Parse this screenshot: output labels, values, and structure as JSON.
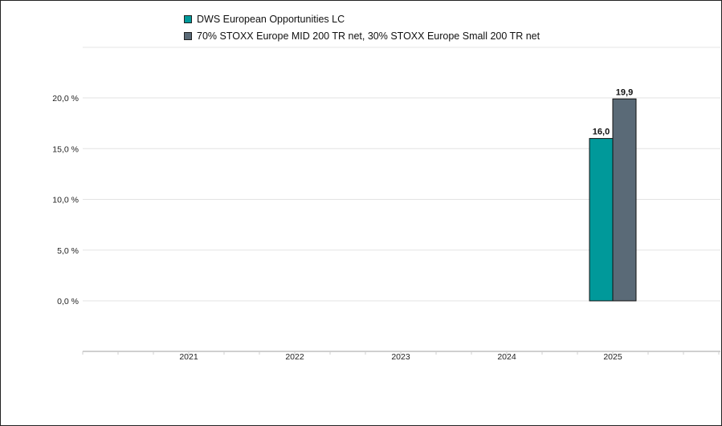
{
  "chart_data": {
    "type": "bar",
    "categories": [
      "2021",
      "2022",
      "2023",
      "2024",
      "2025"
    ],
    "series": [
      {
        "name": "DWS European Opportunities LC",
        "color": "#00999a",
        "values": [
          null,
          null,
          null,
          null,
          16.0
        ],
        "labels": [
          "",
          "",
          "",
          "",
          "16,0"
        ]
      },
      {
        "name": "70% STOXX Europe MID 200 TR net, 30% STOXX Europe Small 200 TR net",
        "color": "#5a6a77",
        "values": [
          null,
          null,
          null,
          null,
          19.9
        ],
        "labels": [
          "",
          "",
          "",
          "",
          "19,9"
        ]
      }
    ],
    "yticks": [
      0,
      5,
      10,
      15,
      20
    ],
    "ytick_labels": [
      "0,0 %",
      "5,0 %",
      "10,0 %",
      "15,0 %",
      "20,0 %"
    ],
    "ylim": [
      -5,
      25
    ],
    "grid": true,
    "legend_position": "top"
  }
}
